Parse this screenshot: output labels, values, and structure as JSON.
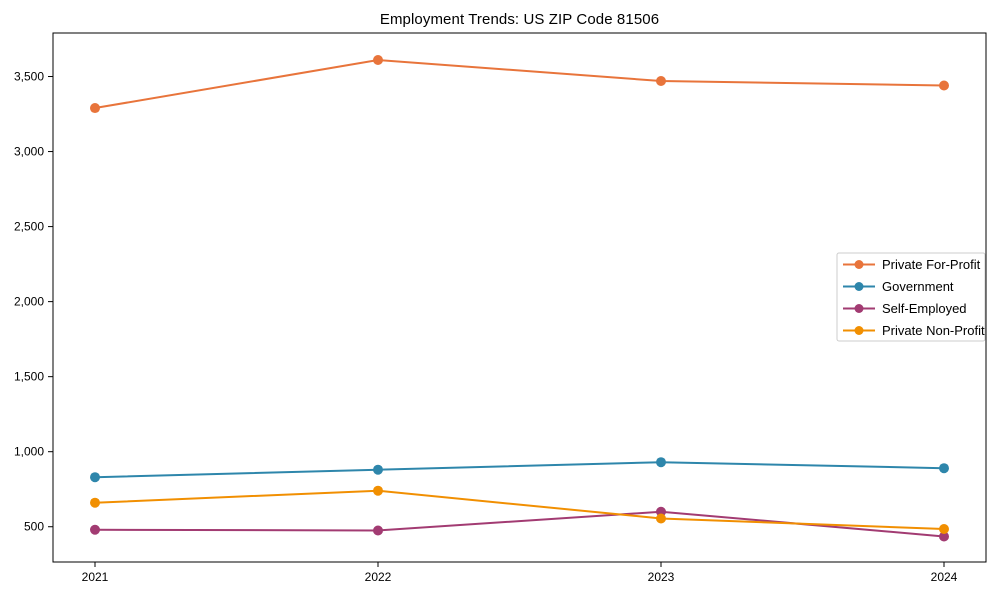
{
  "chart_data": {
    "type": "line",
    "title": "Employment Trends: US ZIP Code 81506",
    "categories": [
      "2021",
      "2022",
      "2023",
      "2024"
    ],
    "series": [
      {
        "name": "Private For-Profit",
        "color": "#E8743B",
        "values": [
          3290,
          3610,
          3470,
          3440
        ]
      },
      {
        "name": "Government",
        "color": "#2E86AB",
        "values": [
          830,
          880,
          930,
          890
        ]
      },
      {
        "name": "Self-Employed",
        "color": "#A23B72",
        "values": [
          480,
          475,
          600,
          435
        ]
      },
      {
        "name": "Private Non-Profit",
        "color": "#F18F01",
        "values": [
          660,
          740,
          555,
          485
        ]
      }
    ],
    "xlabel": "",
    "ylabel": "",
    "ylim": [
      265,
      3790
    ],
    "yticks": [
      500,
      1000,
      1500,
      2000,
      2500,
      3000,
      3500
    ],
    "ytick_labels": [
      "500",
      "1,000",
      "1,500",
      "2,000",
      "2,500",
      "3,000",
      "3,500"
    ],
    "grid": false,
    "legend_position": "center-right",
    "marker": "circle",
    "line_width": 2,
    "axis_color": "#000000",
    "legend_border_color": "#cccccc",
    "background": "#ffffff"
  }
}
